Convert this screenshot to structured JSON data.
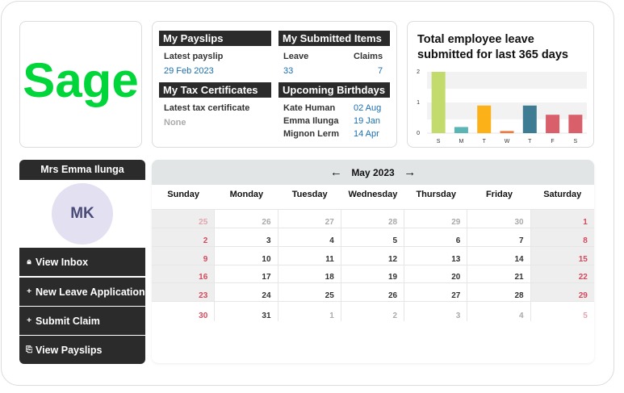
{
  "logo": {
    "text": "Sage",
    "color": "#00d639"
  },
  "payslips": {
    "title": "My Payslips",
    "latest_label": "Latest payslip",
    "latest_value": "29 Feb 2023"
  },
  "submitted": {
    "title": "My Submitted Items",
    "leave_label": "Leave",
    "claims_label": "Claims",
    "leave_count": "33",
    "claims_count": "7"
  },
  "tax": {
    "title": "My Tax Certificates",
    "latest_label": "Latest tax certificate",
    "latest_value": "None"
  },
  "birthdays": {
    "title": "Upcoming Birthdays",
    "items": [
      {
        "name": "Kate Human",
        "date": "02 Aug"
      },
      {
        "name": "Emma Ilunga",
        "date": "19 Jan"
      },
      {
        "name": "Mignon Lerm",
        "date": "14 Apr"
      }
    ]
  },
  "chart_data": {
    "type": "bar",
    "title": "Total employee leave submitted for last 365 days",
    "categories": [
      "S",
      "M",
      "T",
      "W",
      "T",
      "F",
      "S"
    ],
    "values": [
      2,
      0.2,
      0.9,
      0.07,
      0.9,
      0.6,
      0.6
    ],
    "colors": [
      "#c2db6c",
      "#5cb5b5",
      "#fbb117",
      "#f07a3e",
      "#3d7c93",
      "#d95f6b",
      "#d95f6b"
    ],
    "yticks": [
      "0",
      "1",
      "2"
    ],
    "ylim": [
      0,
      2
    ],
    "grid": true
  },
  "profile": {
    "name": "Mrs Emma Ilunga",
    "initials": "MK"
  },
  "menu": {
    "inbox": {
      "icon": "lock-icon",
      "label": "View Inbox"
    },
    "new_leave": {
      "icon": "plus-icon",
      "label": "New Leave Application"
    },
    "claim": {
      "icon": "plus-icon",
      "label": "Submit Claim"
    },
    "payslips": {
      "icon": "copy-icon",
      "label": "View Payslips"
    }
  },
  "calendar": {
    "month": "May 2023",
    "prev_icon": "arrow-left-icon",
    "next_icon": "arrow-right-icon",
    "days": [
      "Sunday",
      "Monday",
      "Tuesday",
      "Wednesday",
      "Thursday",
      "Friday",
      "Saturday"
    ],
    "weeks": [
      [
        "25",
        "26",
        "27",
        "28",
        "29",
        "30",
        "1"
      ],
      [
        "2",
        "3",
        "4",
        "5",
        "6",
        "7",
        "8"
      ],
      [
        "9",
        "10",
        "11",
        "12",
        "13",
        "14",
        "15"
      ],
      [
        "16",
        "17",
        "18",
        "19",
        "20",
        "21",
        "22"
      ],
      [
        "23",
        "24",
        "25",
        "26",
        "27",
        "28",
        "29"
      ],
      [
        "30",
        "31",
        "1",
        "2",
        "3",
        "4",
        "5"
      ]
    ]
  }
}
